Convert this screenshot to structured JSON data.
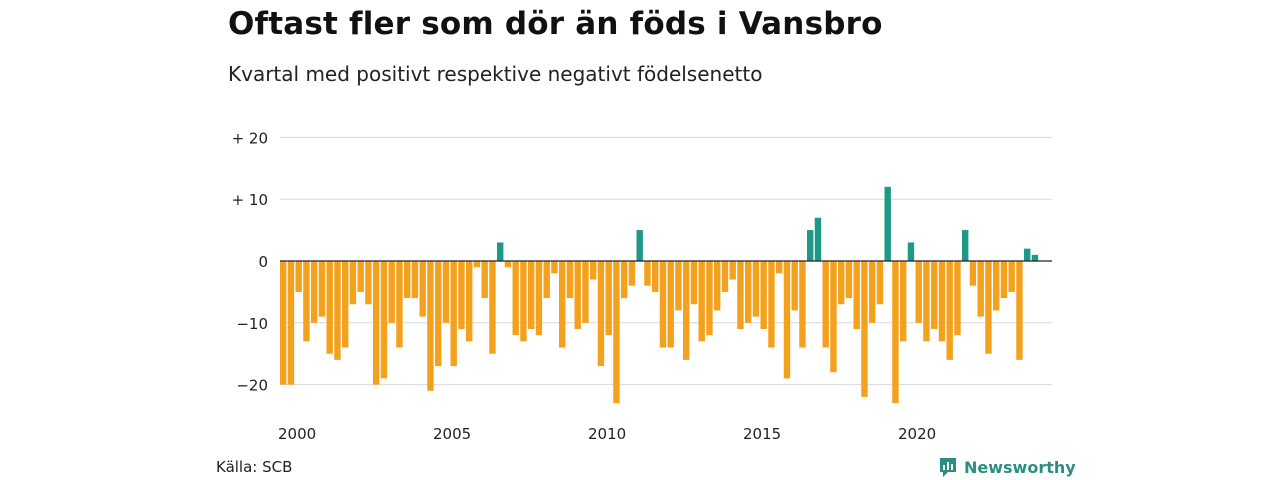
{
  "title": "Oftast fler som dör än föds i Vansbro",
  "subtitle": "Kvartal med positivt respektive negativt födelsenetto",
  "source": "Källa: SCB",
  "brand": "Newsworthy",
  "colors": {
    "negative": "#f4a11e",
    "positive": "#1f9888",
    "grid": "#d9d9d9",
    "zero_line": "#222222",
    "brand": "#2a8f82"
  },
  "chart_data": {
    "type": "bar",
    "x_start": "2000 Q1",
    "quarters_per_year": 4,
    "values": [
      -20,
      -20,
      -5,
      -13,
      -10,
      -9,
      -15,
      -16,
      -14,
      -7,
      -5,
      -7,
      -20,
      -19,
      -10,
      -14,
      -6,
      -6,
      -9,
      -21,
      -17,
      -10,
      -17,
      -11,
      -13,
      -1,
      -6,
      -15,
      3,
      -1,
      -12,
      -13,
      -11,
      -12,
      -6,
      -2,
      -14,
      -6,
      -11,
      -10,
      -3,
      -17,
      -12,
      -23,
      -6,
      -4,
      5,
      -4,
      -5,
      -14,
      -14,
      -8,
      -16,
      -7,
      -13,
      -12,
      -8,
      -5,
      -3,
      -11,
      -10,
      -9,
      -11,
      -14,
      -2,
      -19,
      -8,
      -14,
      5,
      7,
      -14,
      -18,
      -7,
      -6,
      -11,
      -22,
      -10,
      -7,
      12,
      -23,
      -13,
      3,
      -10,
      -13,
      -11,
      -13,
      -16,
      -12,
      5,
      -4,
      -9,
      -15,
      -8,
      -6,
      -5,
      -16,
      2,
      1
    ],
    "x_ticks": [
      "2000",
      "2005",
      "2010",
      "2015",
      "2020"
    ],
    "y_ticks": [
      "+ 20",
      "+ 10",
      "0",
      "−10",
      "−20"
    ],
    "y_tick_values": [
      20,
      10,
      0,
      -10,
      -20
    ],
    "ylim": [
      -25,
      20
    ],
    "grid": true,
    "legend": "none"
  }
}
